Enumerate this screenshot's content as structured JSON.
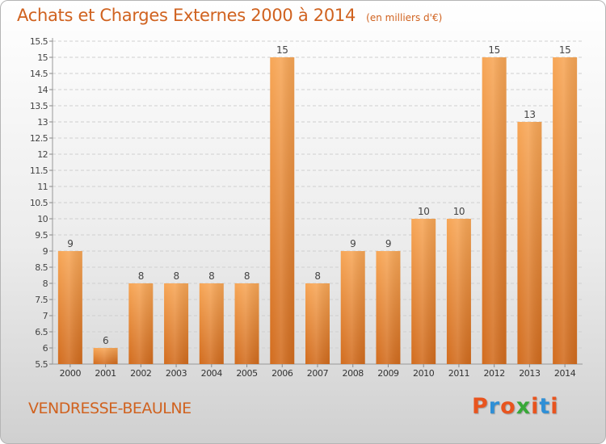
{
  "header": {
    "title": "Achats et Charges Externes 2000 à 2014",
    "subtitle": "(en milliers d'€)"
  },
  "footer": {
    "commune": "VENDRESSE-BEAULNE",
    "brand": "Proxiti",
    "brand_colors": [
      "#e8541e",
      "#2f8fd6",
      "#e8541e",
      "#38a838",
      "#e8541e",
      "#2f8fd6",
      "#e8541e"
    ]
  },
  "colors": {
    "bar_light": "#f7a656",
    "bar_dark": "#d26c1e",
    "title": "#d0621f",
    "grid": "#cfcfcf"
  },
  "chart_data": {
    "type": "bar",
    "title": "Achats et Charges Externes 2000 à 2014",
    "subtitle": "(en milliers d'€)",
    "categories": [
      "2000",
      "2001",
      "2002",
      "2003",
      "2004",
      "2005",
      "2006",
      "2007",
      "2008",
      "2009",
      "2010",
      "2011",
      "2012",
      "2013",
      "2014"
    ],
    "values": [
      9,
      6,
      8,
      8,
      8,
      8,
      15,
      8,
      9,
      9,
      10,
      10,
      15,
      13,
      15
    ],
    "data_labels": [
      "9",
      "6",
      "8",
      "8",
      "8",
      "8",
      "15",
      "8",
      "9",
      "9",
      "10",
      "10",
      "15",
      "13",
      "15"
    ],
    "ylim": [
      5.5,
      15.5
    ],
    "yticks": [
      5.5,
      6,
      6.5,
      7,
      7.5,
      8,
      8.5,
      9,
      9.5,
      10,
      10.5,
      11,
      11.5,
      12,
      12.5,
      13,
      13.5,
      14,
      14.5,
      15,
      15.5
    ],
    "ytick_labels": [
      "5.5",
      "6",
      "6.5",
      "7",
      "7.5",
      "8",
      "8.5",
      "9",
      "9.5",
      "10",
      "10.5",
      "11",
      "11.5",
      "12",
      "12.5",
      "13",
      "13.5",
      "14",
      "14.5",
      "15",
      "15.5"
    ],
    "xlabel": "",
    "ylabel": "",
    "grid": true,
    "legend": "none"
  }
}
